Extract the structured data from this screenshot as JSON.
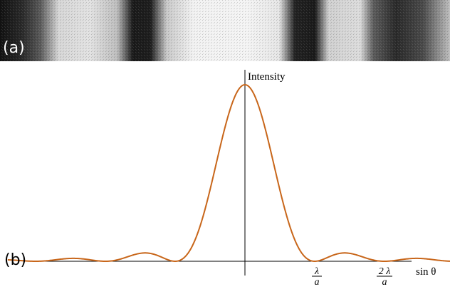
{
  "labels": {
    "panel_a": "(a)",
    "panel_b": "(b)"
  },
  "colors": {
    "curve": "#c8661a",
    "axis": "#000000"
  },
  "chart_data": {
    "type": "line",
    "ylabel": "Intensity",
    "xlabel": "sin θ",
    "ticks": [
      {
        "value": 1,
        "numerator": "λ",
        "denominator": "a"
      },
      {
        "value": 2,
        "numerator": "2 λ",
        "denominator": "a"
      }
    ],
    "xlim": [
      -3.4,
      3.0
    ],
    "ylim": [
      0,
      1
    ]
  }
}
